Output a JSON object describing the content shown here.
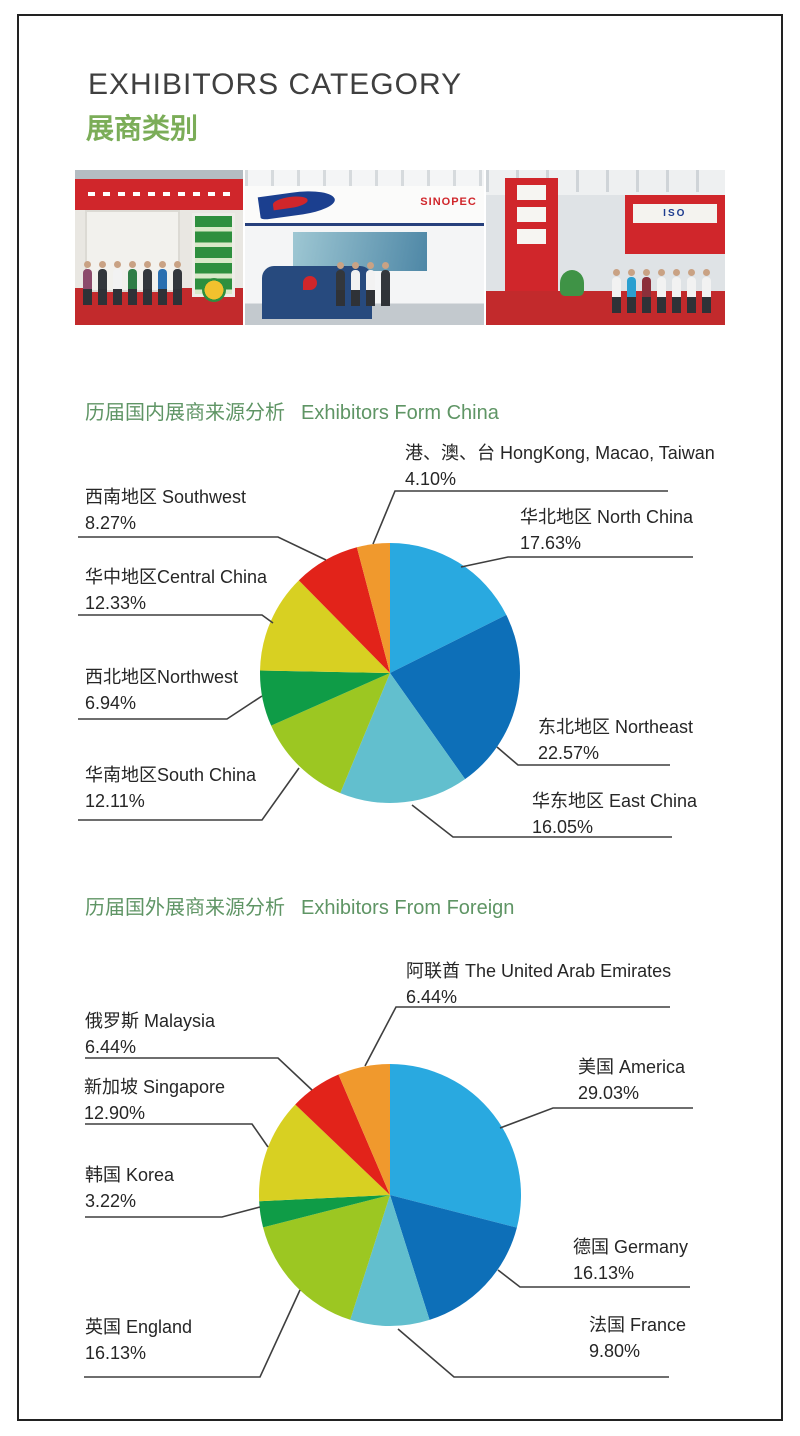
{
  "header": {
    "title_en": "EXHIBITORS CATEGORY",
    "title_zh": "展商类别"
  },
  "photo": {
    "description": "exhibition hall photo collage with red booths and visitors",
    "sinopec_text": "SINOPEC",
    "iso_text": "ISO"
  },
  "sections": [
    {
      "title_zh": "历届国内展商来源分析",
      "title_en": "Exhibitors Form China"
    },
    {
      "title_zh": "历届国外展商来源分析",
      "title_en": "Exhibitors From Foreign"
    }
  ],
  "chart_data": [
    {
      "type": "pie",
      "title": "历届国内展商来源分析 Exhibitors Form China",
      "start_angle_deg": 0,
      "direction": "clockwise",
      "unit": "percent",
      "slices": [
        {
          "label": "华北地区 North China",
          "pct": "17.63%",
          "value": 17.63,
          "color": "#29a9e0"
        },
        {
          "label": "东北地区 Northeast",
          "pct": "22.57%",
          "value": 22.57,
          "color": "#0d6fb8"
        },
        {
          "label": "华东地区 East China",
          "pct": "16.05%",
          "value": 16.05,
          "color": "#62bfce"
        },
        {
          "label": "华南地区South China",
          "pct": "12.11%",
          "value": 12.11,
          "color": "#9cc722"
        },
        {
          "label": "西北地区Northwest",
          "pct": "6.94%",
          "value": 6.94,
          "color": "#0f9c47"
        },
        {
          "label": "华中地区Central China",
          "pct": "12.33%",
          "value": 12.33,
          "color": "#d8d022"
        },
        {
          "label": "西南地区 Southwest",
          "pct": "8.27%",
          "value": 8.27,
          "color": "#e2231a"
        },
        {
          "label": "港、澳、台 HongKong, Macao, Taiwan",
          "pct": "4.10%",
          "value": 4.1,
          "color": "#f0992d"
        }
      ]
    },
    {
      "type": "pie",
      "title": "历届国外展商来源分析 Exhibitors From Foreign",
      "start_angle_deg": 0,
      "direction": "clockwise",
      "unit": "percent",
      "slices": [
        {
          "label": "美国 America",
          "pct": "29.03%",
          "value": 29.03,
          "color": "#29a9e0"
        },
        {
          "label": "德国 Germany",
          "pct": "16.13%",
          "value": 16.13,
          "color": "#0d6fb8"
        },
        {
          "label": "法国 France",
          "pct": "9.80%",
          "value": 9.8,
          "color": "#62bfce"
        },
        {
          "label": "英国 England",
          "pct": "16.13%",
          "value": 16.13,
          "color": "#9cc722"
        },
        {
          "label": "韩国 Korea",
          "pct": "3.22%",
          "value": 3.22,
          "color": "#0f9c47"
        },
        {
          "label": "新加坡 Singapore",
          "pct": "12.90%",
          "value": 12.9,
          "color": "#d8d022"
        },
        {
          "label": "俄罗斯 Malaysia",
          "pct": "6.44%",
          "value": 6.44,
          "color": "#e2231a"
        },
        {
          "label": "阿联酋 The United Arab Emirates",
          "pct": "6.44%",
          "value": 6.44,
          "color": "#f0992d"
        }
      ]
    }
  ]
}
